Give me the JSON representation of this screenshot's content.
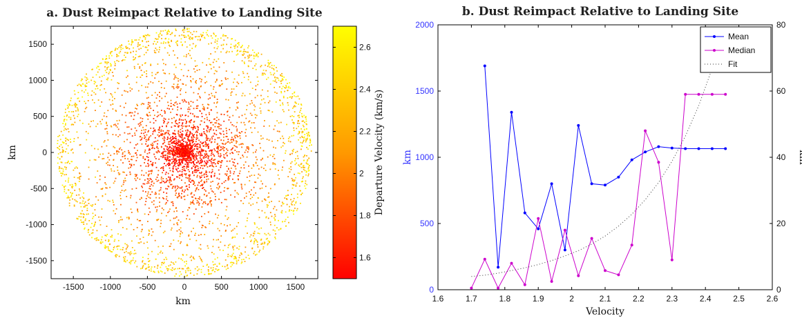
{
  "chart_data": [
    {
      "type": "scatter",
      "title": "a. Dust Reimpact Relative to Landing Site",
      "xlabel": "km",
      "ylabel": "km",
      "xlim": [
        -1800,
        1800
      ],
      "ylim": [
        -1750,
        1750
      ],
      "xticks": [
        -1500,
        -1000,
        -500,
        0,
        500,
        1000,
        1500
      ],
      "yticks": [
        -1500,
        -1000,
        -500,
        0,
        500,
        1000,
        1500
      ],
      "max_radius_km": 1720,
      "colorbar": {
        "label": "Departure Velocity (km/s)",
        "range": [
          1.5,
          2.7
        ],
        "ticks": [
          1.6,
          1.8,
          2.0,
          2.2,
          2.4,
          2.6
        ],
        "tick_labels": [
          "1.6",
          "1.8",
          "2",
          "2.2",
          "2.4",
          "2.6"
        ],
        "color_low": "#ff0000",
        "color_high": "#ffff00"
      },
      "point_count": 4200,
      "grid": false
    },
    {
      "type": "line",
      "title": "b. Dust Reimpact Relative to Landing Site",
      "xlabel": "Velocity",
      "ylabel_left": "km",
      "ylabel_right": "km",
      "xlim": [
        1.6,
        2.6
      ],
      "ylim_left": [
        0,
        2000
      ],
      "ylim_right": [
        0,
        80
      ],
      "xticks": [
        1.6,
        1.7,
        1.8,
        1.9,
        2.0,
        2.1,
        2.2,
        2.3,
        2.4,
        2.5,
        2.6
      ],
      "xtick_labels": [
        "1.6",
        "1.7",
        "1.8",
        "1.9",
        "2",
        "2.1",
        "2.2",
        "2.3",
        "2.4",
        "2.5",
        "2.6"
      ],
      "yticks_left": [
        0,
        500,
        1000,
        1500,
        2000
      ],
      "yticks_right": [
        0,
        20,
        40,
        60,
        80
      ],
      "left_axis_color": "#3333ff",
      "legend_position": "top-right",
      "series": [
        {
          "name": "Mean",
          "axis": "left",
          "color": "#0000ff",
          "x": [
            1.74,
            1.78,
            1.82,
            1.86,
            1.9,
            1.94,
            1.98,
            2.02,
            2.06,
            2.1,
            2.14,
            2.18,
            2.22,
            2.26,
            2.3,
            2.34,
            2.38,
            2.42,
            2.46
          ],
          "y": [
            1690,
            170,
            1340,
            580,
            460,
            800,
            300,
            1240,
            800,
            790,
            850,
            980,
            1040,
            1080,
            1070,
            1065,
            1065,
            1065,
            1065
          ]
        },
        {
          "name": "Median",
          "axis": "right",
          "color": "#cc00cc",
          "x": [
            1.7,
            1.74,
            1.78,
            1.82,
            1.86,
            1.9,
            1.94,
            1.98,
            2.02,
            2.06,
            2.1,
            2.14,
            2.18,
            2.22,
            2.26,
            2.3,
            2.34,
            2.38,
            2.42,
            2.46
          ],
          "y": [
            0.5,
            9.2,
            0.5,
            8.0,
            1.5,
            21.5,
            2.5,
            18.0,
            4.2,
            15.5,
            5.8,
            4.5,
            13.5,
            48.0,
            38.5,
            9.0,
            59.0,
            59.0,
            59.0,
            59.0
          ]
        },
        {
          "name": "Fit",
          "axis": "left",
          "color": "#333333",
          "style": "dotted",
          "x": [
            1.7,
            1.74,
            1.78,
            1.82,
            1.86,
            1.9,
            1.94,
            1.98,
            2.02,
            2.06,
            2.1,
            2.14,
            2.18,
            2.22,
            2.26,
            2.3,
            2.34,
            2.38,
            2.42,
            2.46
          ],
          "y": [
            100,
            110,
            125,
            145,
            165,
            190,
            220,
            255,
            295,
            345,
            405,
            480,
            570,
            680,
            810,
            970,
            1160,
            1390,
            1670,
            1990
          ]
        }
      ]
    }
  ]
}
